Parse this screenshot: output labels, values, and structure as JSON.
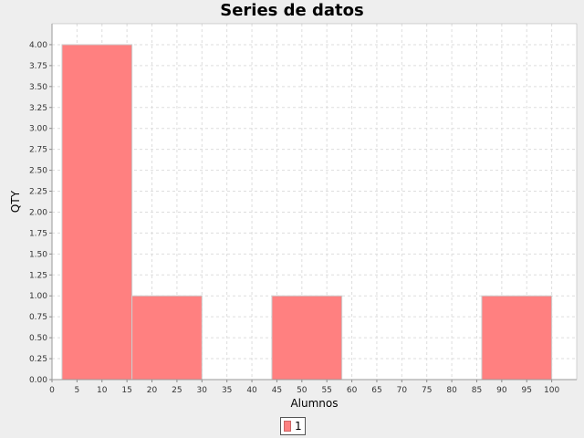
{
  "chart_data": {
    "type": "bar",
    "title": "Series de datos",
    "xlabel": "Alumnos",
    "ylabel": "QTY",
    "xlim": [
      0,
      105
    ],
    "ylim": [
      0,
      4.25
    ],
    "x_ticks": [
      "0",
      "5",
      "10",
      "15",
      "20",
      "25",
      "30",
      "35",
      "40",
      "45",
      "50",
      "55",
      "60",
      "65",
      "70",
      "75",
      "80",
      "85",
      "90",
      "95",
      "100"
    ],
    "y_ticks": [
      "0.00",
      "0.25",
      "0.50",
      "0.75",
      "1.00",
      "1.25",
      "1.50",
      "1.75",
      "2.00",
      "2.25",
      "2.50",
      "2.75",
      "3.00",
      "3.25",
      "3.50",
      "3.75",
      "4.00"
    ],
    "grid": true,
    "legend_position": "bottom-center",
    "series": [
      {
        "name": "1",
        "color": "#ff8080",
        "bins": [
          {
            "from": 2,
            "to": 16,
            "value": 4
          },
          {
            "from": 16,
            "to": 30,
            "value": 1
          },
          {
            "from": 44,
            "to": 58,
            "value": 1
          },
          {
            "from": 86,
            "to": 100,
            "value": 1
          }
        ]
      }
    ]
  }
}
